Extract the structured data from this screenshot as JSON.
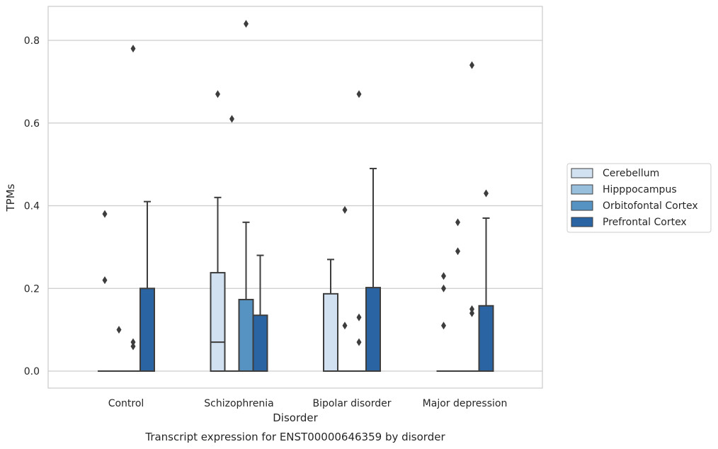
{
  "chart_data": {
    "type": "box",
    "xlabel": "Disorder",
    "ylabel": "TPMs",
    "caption": "Transcript expression for ENST00000646359 by disorder",
    "ylim": [
      -0.04,
      0.885
    ],
    "yticks": [
      "0.0",
      "0.2",
      "0.4",
      "0.6",
      "0.8"
    ],
    "grid": "horizontal",
    "legend_position": "right",
    "categories": [
      "Control",
      "Schizophrenia",
      "Bipolar disorder",
      "Major depression"
    ],
    "series": [
      {
        "name": "Cerebellum",
        "color": "#d1e1f1",
        "boxes": [
          {
            "q1": 0,
            "median": 0,
            "q3": 0,
            "whisker_low": 0,
            "whisker_high": 0,
            "outliers": [
              0.38,
              0.22
            ]
          },
          {
            "q1": 0,
            "median": 0.07,
            "q3": 0.238,
            "whisker_low": 0,
            "whisker_high": 0.42,
            "outliers": [
              0.67
            ]
          },
          {
            "q1": 0,
            "median": 0,
            "q3": 0.187,
            "whisker_low": 0,
            "whisker_high": 0.27,
            "outliers": []
          },
          {
            "q1": 0,
            "median": 0,
            "q3": 0,
            "whisker_low": 0,
            "whisker_high": 0,
            "outliers": [
              0.23,
              0.2,
              0.11
            ]
          }
        ]
      },
      {
        "name": "Hipppocampus",
        "color": "#98c0dd",
        "boxes": [
          {
            "q1": 0,
            "median": 0,
            "q3": 0,
            "whisker_low": 0,
            "whisker_high": 0,
            "outliers": [
              0.1
            ]
          },
          {
            "q1": 0,
            "median": 0,
            "q3": 0,
            "whisker_low": 0,
            "whisker_high": 0,
            "outliers": [
              0.61
            ]
          },
          {
            "q1": 0,
            "median": 0,
            "q3": 0,
            "whisker_low": 0,
            "whisker_high": 0,
            "outliers": [
              0.39,
              0.11
            ]
          },
          {
            "q1": 0,
            "median": 0,
            "q3": 0,
            "whisker_low": 0,
            "whisker_high": 0,
            "outliers": [
              0.36,
              0.29
            ]
          }
        ]
      },
      {
        "name": "Orbitofontal Cortex",
        "color": "#5693c2",
        "boxes": [
          {
            "q1": 0,
            "median": 0,
            "q3": 0,
            "whisker_low": 0,
            "whisker_high": 0,
            "outliers": [
              0.78,
              0.07,
              0.06
            ]
          },
          {
            "q1": 0,
            "median": 0,
            "q3": 0.173,
            "whisker_low": 0,
            "whisker_high": 0.36,
            "outliers": [
              0.84
            ]
          },
          {
            "q1": 0,
            "median": 0,
            "q3": 0,
            "whisker_low": 0,
            "whisker_high": 0,
            "outliers": [
              0.67,
              0.13,
              0.07
            ]
          },
          {
            "q1": 0,
            "median": 0,
            "q3": 0,
            "whisker_low": 0,
            "whisker_high": 0,
            "outliers": [
              0.74,
              0.15,
              0.14
            ]
          }
        ]
      },
      {
        "name": "Prefrontal Cortex",
        "color": "#2a64a3",
        "boxes": [
          {
            "q1": 0,
            "median": 0,
            "q3": 0.2,
            "whisker_low": 0,
            "whisker_high": 0.41,
            "outliers": []
          },
          {
            "q1": 0,
            "median": 0,
            "q3": 0.135,
            "whisker_low": 0,
            "whisker_high": 0.28,
            "outliers": []
          },
          {
            "q1": 0,
            "median": 0,
            "q3": 0.202,
            "whisker_low": 0,
            "whisker_high": 0.49,
            "outliers": []
          },
          {
            "q1": 0,
            "median": 0,
            "q3": 0.158,
            "whisker_low": 0,
            "whisker_high": 0.37,
            "outliers": [
              0.43
            ]
          }
        ]
      }
    ]
  }
}
